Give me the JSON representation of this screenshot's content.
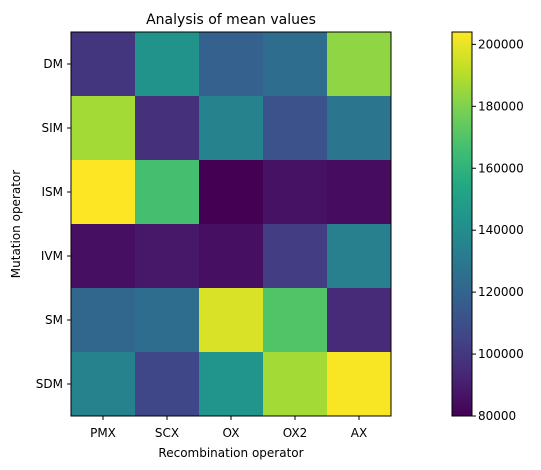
{
  "chart_data": {
    "type": "heatmap",
    "title": "Analysis of mean values",
    "xlabel": "Recombination operator",
    "ylabel": "Mutation operator",
    "x_categories": [
      "PMX",
      "SCX",
      "OX",
      "OX2",
      "AX"
    ],
    "y_categories": [
      "DM",
      "SIM",
      "ISM",
      "IVM",
      "SM",
      "SDM"
    ],
    "values": [
      [
        99000,
        143000,
        118000,
        124000,
        183000
      ],
      [
        187000,
        97000,
        135000,
        111000,
        128000
      ],
      [
        204000,
        167000,
        80000,
        86000,
        84000
      ],
      [
        85000,
        88000,
        85000,
        102000,
        133000
      ],
      [
        121000,
        124000,
        197000,
        170000,
        95000
      ],
      [
        135000,
        106000,
        144000,
        187000,
        203000
      ]
    ],
    "colorbar": {
      "vmin": 80000,
      "vmax": 204000,
      "ticks": [
        80000,
        100000,
        120000,
        140000,
        160000,
        180000,
        200000
      ],
      "tick_labels": [
        "80000",
        "100000",
        "120000",
        "140000",
        "160000",
        "180000",
        "200000"
      ],
      "colormap": "viridis"
    },
    "grid": false,
    "legend": "colorbar-right"
  }
}
